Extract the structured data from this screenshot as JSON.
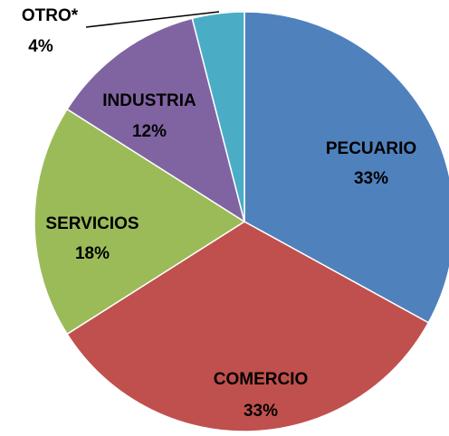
{
  "chart_data": {
    "type": "pie",
    "categories": [
      "PECUARIO",
      "COMERCIO",
      "SERVICIOS",
      "INDUSTRIA",
      "OTRO*"
    ],
    "values": [
      33,
      33,
      18,
      12,
      4
    ],
    "value_labels": [
      "33%",
      "33%",
      "18%",
      "12%",
      "4%"
    ],
    "colors": [
      "#4f81bd",
      "#c0504d",
      "#9bbb59",
      "#8064a2",
      "#4bacc6"
    ]
  }
}
